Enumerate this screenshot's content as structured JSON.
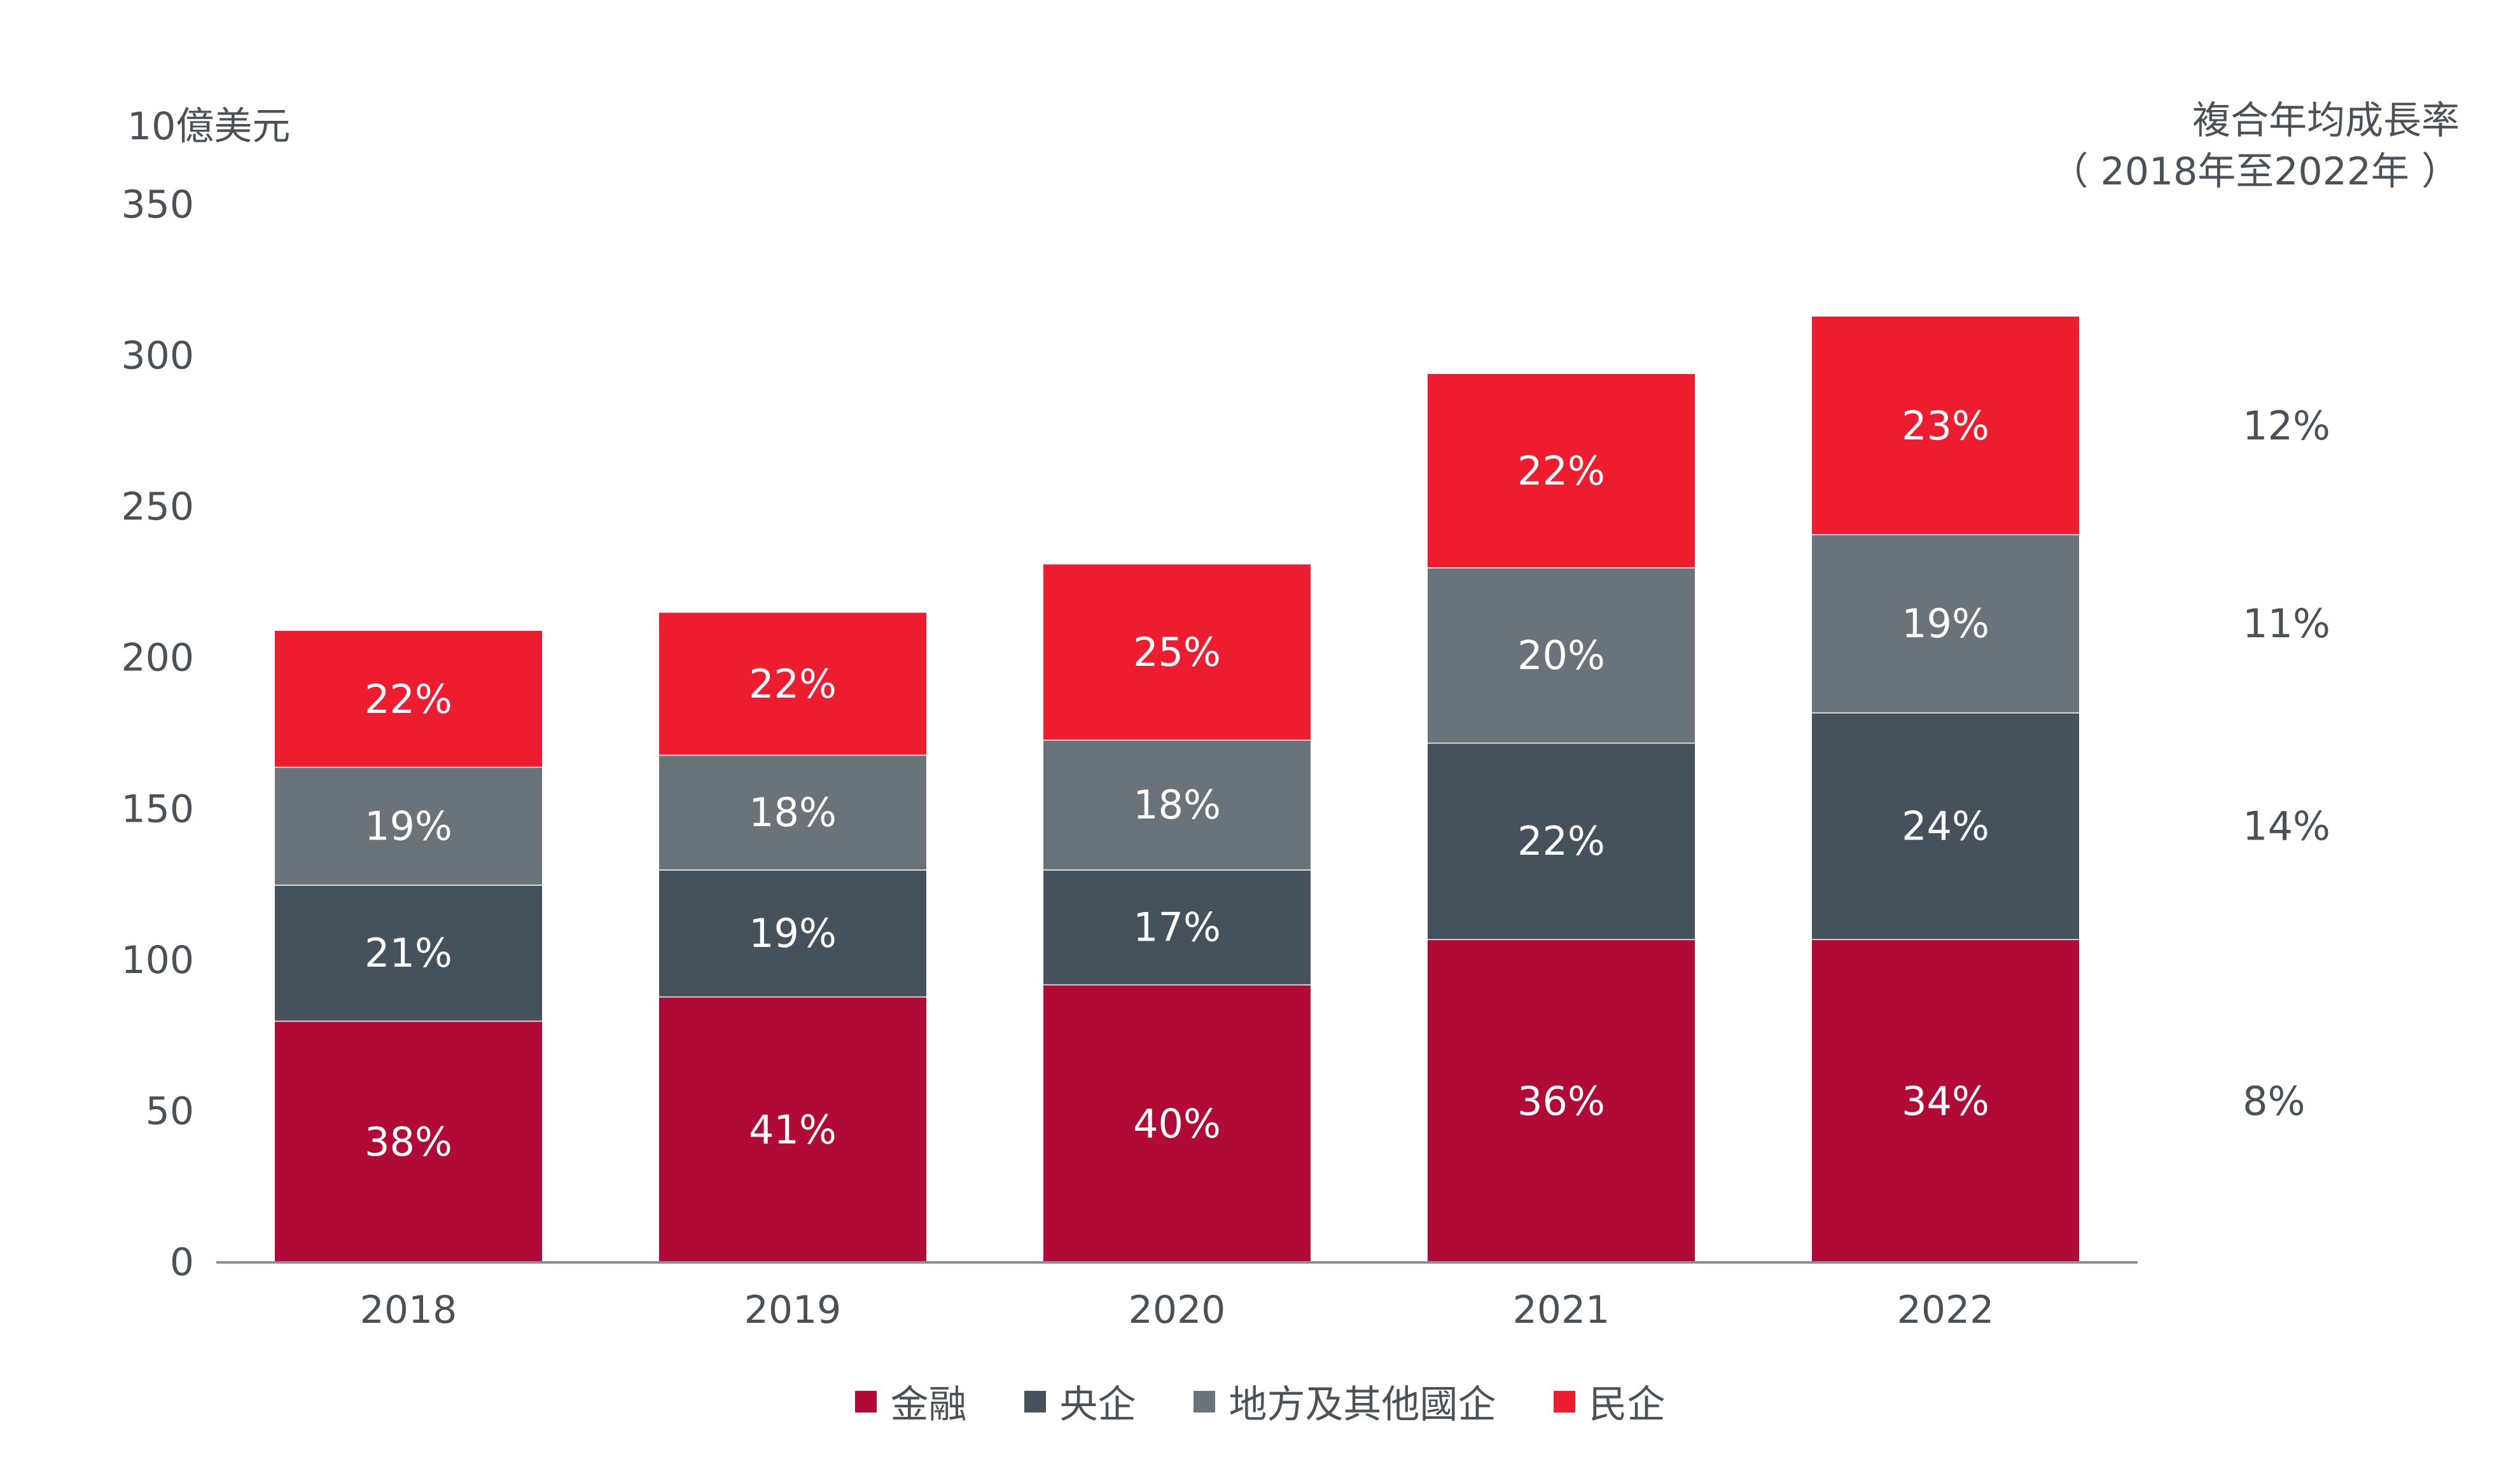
{
  "chart_data": {
    "type": "bar",
    "stacked": true,
    "title": "",
    "ylabel": "10億美元",
    "xlabel": "",
    "ylim": [
      0,
      350
    ],
    "yticks": [
      0,
      50,
      100,
      150,
      200,
      250,
      300,
      350
    ],
    "grid": false,
    "legend_position": "bottom",
    "categories": [
      "2018",
      "2019",
      "2020",
      "2021",
      "2022"
    ],
    "totals": [
      209,
      215,
      231,
      294,
      313
    ],
    "series": [
      {
        "name": "金融",
        "color": "#b20a37",
        "values": [
          80,
          88,
          92,
          107,
          107
        ],
        "labels": [
          "38%",
          "41%",
          "40%",
          "36%",
          "34%"
        ]
      },
      {
        "name": "央企",
        "color": "#45525c",
        "values": [
          45,
          42,
          38,
          65,
          75
        ],
        "labels": [
          "21%",
          "19%",
          "17%",
          "22%",
          "24%"
        ]
      },
      {
        "name": "地方及其他國企",
        "color": "#6a7379",
        "values": [
          39,
          38,
          43,
          58,
          59
        ],
        "labels": [
          "19%",
          "18%",
          "18%",
          "20%",
          "19%"
        ]
      },
      {
        "name": "民企",
        "color": "#ed1c2e",
        "values": [
          45,
          47,
          58,
          64,
          72
        ],
        "labels": [
          "22%",
          "22%",
          "25%",
          "22%",
          "23%"
        ]
      }
    ],
    "cagr": {
      "title_line1": "複合年均成長率",
      "title_line2": "（ 2018年至2022年 ）",
      "values_by_series": [
        "8%",
        "14%",
        "11%",
        "12%"
      ]
    }
  }
}
